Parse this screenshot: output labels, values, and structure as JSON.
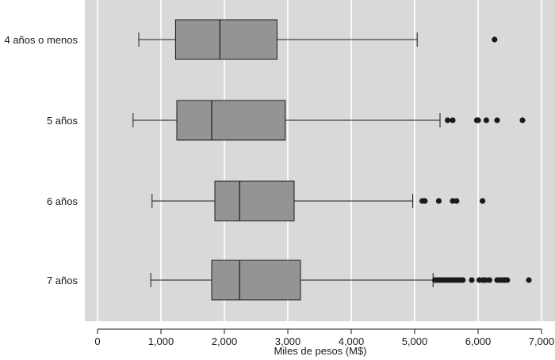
{
  "chart_data": {
    "type": "boxplot",
    "orientation": "horizontal",
    "title": "",
    "xlabel": "Miles de pesos (M$)",
    "ylabel": "",
    "xlim": [
      0,
      7000
    ],
    "xticks": [
      0,
      1000,
      2000,
      3000,
      4000,
      5000,
      6000,
      7000
    ],
    "xtick_labels": [
      "0",
      "1,000",
      "2,000",
      "3,000",
      "4,000",
      "5,000",
      "6,000",
      "7,000"
    ],
    "grid": "vertical",
    "colors": {
      "panel_background": "#d9d9d9",
      "box_fill": "#949494",
      "gridline": "#ffffff",
      "line": "#1a1a1a",
      "outlier": "#1a1a1a"
    },
    "categories": [
      "4 años o menos",
      "5 años",
      "6 años",
      "7 años"
    ],
    "boxes": [
      {
        "category": "4 años o menos",
        "whisker_low": 650,
        "q1": 1230,
        "median": 1930,
        "q3": 2830,
        "whisker_high": 5040,
        "outliers": [
          6260
        ]
      },
      {
        "category": "5 años",
        "whisker_low": 560,
        "q1": 1250,
        "median": 1800,
        "q3": 2960,
        "whisker_high": 5400,
        "outliers": [
          5520,
          5600,
          5980,
          6000,
          6130,
          6300,
          6700
        ]
      },
      {
        "category": "6 años",
        "whisker_low": 860,
        "q1": 1850,
        "median": 2240,
        "q3": 3100,
        "whisker_high": 4970,
        "outliers": [
          5120,
          5160,
          5380,
          5600,
          5660,
          6070
        ]
      },
      {
        "category": "7 años",
        "whisker_low": 840,
        "q1": 1800,
        "median": 2240,
        "q3": 3200,
        "whisker_high": 5290,
        "outliers": [
          5320,
          5360,
          5400,
          5440,
          5480,
          5520,
          5560,
          5600,
          5640,
          5680,
          5720,
          5760,
          5900,
          6020,
          6080,
          6120,
          6180,
          6300,
          6340,
          6380,
          6420,
          6460,
          6800
        ]
      }
    ]
  }
}
